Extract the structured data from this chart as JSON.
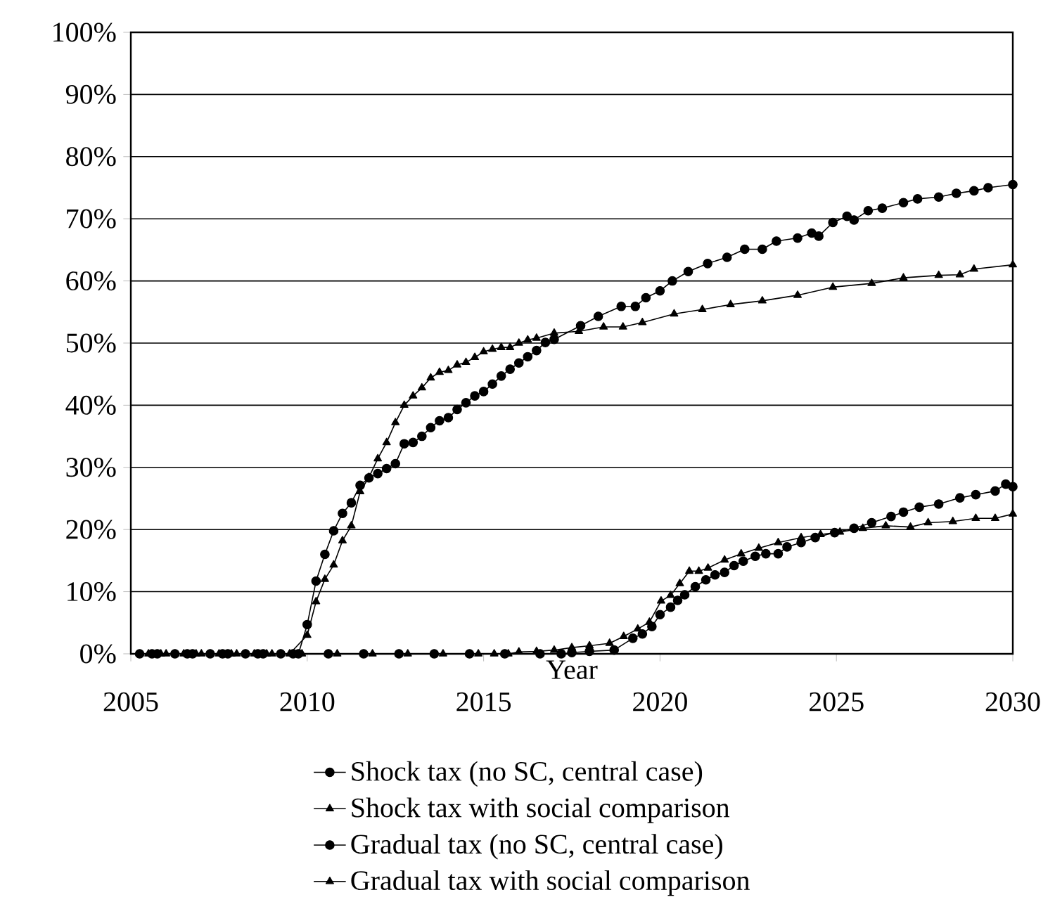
{
  "chart_data": {
    "type": "line",
    "xlabel": "Year",
    "xlim": [
      2005,
      2030
    ],
    "xticks": [
      2005,
      2010,
      2015,
      2020,
      2025,
      2030
    ],
    "ylim": [
      0,
      100
    ],
    "yticks": [
      {
        "value": 0,
        "label": "0%"
      },
      {
        "value": 10,
        "label": "10%"
      },
      {
        "value": 20,
        "label": "20%"
      },
      {
        "value": 30,
        "label": "30%"
      },
      {
        "value": 40,
        "label": "40%"
      },
      {
        "value": 50,
        "label": "50%"
      },
      {
        "value": 60,
        "label": "60%"
      },
      {
        "value": 70,
        "label": "70%"
      },
      {
        "value": 80,
        "label": "80%"
      },
      {
        "value": 90,
        "label": "90%"
      },
      {
        "value": 100,
        "label": "100%"
      }
    ],
    "grid": "y",
    "legend": "bottom",
    "line_style": "solid",
    "series": [
      {
        "name": "Shock tax (no SC, central case)",
        "color": "#000000",
        "marker": "circle",
        "x": [
          2005.25,
          2005.75,
          2006.25,
          2006.75,
          2007.25,
          2007.75,
          2008.25,
          2008.75,
          2009.25,
          2009.75,
          2010,
          2010.25,
          2010.5,
          2010.75,
          2011,
          2011.25,
          2011.5,
          2011.75,
          2012,
          2012.25,
          2012.5,
          2012.75,
          2013,
          2013.25,
          2013.5,
          2013.75,
          2014,
          2014.25,
          2014.5,
          2014.75,
          2015,
          2015.25,
          2015.5,
          2015.75,
          2016,
          2016.25,
          2016.5,
          2016.75,
          2017,
          2017.75,
          2018.25,
          2018.9,
          2019.3,
          2019.6,
          2020,
          2020.35,
          2020.8,
          2021.35,
          2021.9,
          2022.4,
          2022.9,
          2023.3,
          2023.9,
          2024.3,
          2024.5,
          2024.9,
          2025.3,
          2025.5,
          2025.9,
          2026.3,
          2026.9,
          2027.3,
          2027.9,
          2028.4,
          2028.9,
          2029.3,
          2030
        ],
        "values": [
          0,
          0,
          0,
          0,
          0,
          0,
          0,
          0,
          0,
          0,
          4.7,
          11.7,
          16,
          19.8,
          22.6,
          24.3,
          27.1,
          28.3,
          29.0,
          29.8,
          30.6,
          33.8,
          34.0,
          35.0,
          36.4,
          37.5,
          38.0,
          39.3,
          40.4,
          41.5,
          42.2,
          43.4,
          44.7,
          45.8,
          46.8,
          47.8,
          48.8,
          50.1,
          50.6,
          52.8,
          54.3,
          55.9,
          55.9,
          57.3,
          58.4,
          60.0,
          61.5,
          62.8,
          63.8,
          65.1,
          65.1,
          66.4,
          66.9,
          67.7,
          67.2,
          69.4,
          70.4,
          69.8,
          71.3,
          71.7,
          72.6,
          73.2,
          73.5,
          74.1,
          74.5,
          75.0,
          75.5
        ]
      },
      {
        "name": "Shock tax with social comparison",
        "color": "#000000",
        "marker": "triangle",
        "x": [
          2005.5,
          2006,
          2006.5,
          2007,
          2007.5,
          2008,
          2008.5,
          2009,
          2009.5,
          2010,
          2010.25,
          2010.5,
          2010.75,
          2011,
          2011.25,
          2011.5,
          2011.75,
          2012,
          2012.25,
          2012.5,
          2012.75,
          2013,
          2013.25,
          2013.5,
          2013.75,
          2014,
          2014.25,
          2014.5,
          2014.75,
          2015,
          2015.25,
          2015.5,
          2015.75,
          2016,
          2016.25,
          2016.5,
          2017,
          2017.7,
          2018.4,
          2018.95,
          2019.5,
          2020.4,
          2021.2,
          2022,
          2022.9,
          2023.9,
          2024.9,
          2026,
          2026.9,
          2027.9,
          2028.5,
          2028.9,
          2030
        ],
        "values": [
          0,
          0,
          0,
          0,
          0,
          0,
          0,
          0,
          0,
          3.0,
          8.4,
          12,
          14.3,
          18.2,
          20.6,
          26.1,
          28.4,
          31.4,
          34.0,
          37.2,
          40.0,
          41.5,
          42.8,
          44.4,
          45.3,
          45.6,
          46.5,
          46.9,
          47.7,
          48.6,
          49.0,
          49.3,
          49.3,
          50.0,
          50.5,
          50.8,
          51.6,
          51.9,
          52.6,
          52.6,
          53.3,
          54.7,
          55.4,
          56.2,
          56.8,
          57.7,
          59.0,
          59.6,
          60.5,
          60.9,
          61.0,
          61.9,
          62.6
        ]
      },
      {
        "name": "Gradual tax (no SC, central case)",
        "color": "#000000",
        "marker": "circle",
        "x": [
          2005.6,
          2006.6,
          2007.6,
          2008.6,
          2009.6,
          2010.6,
          2011.6,
          2012.6,
          2013.6,
          2014.6,
          2015.6,
          2016.6,
          2017.2,
          2017.5,
          2018,
          2018.7,
          2019.23,
          2019.5,
          2019.77,
          2020,
          2020.3,
          2020.5,
          2020.7,
          2021,
          2021.3,
          2021.56,
          2021.83,
          2022.1,
          2022.36,
          2022.7,
          2023,
          2023.35,
          2023.6,
          2024,
          2024.4,
          2024.95,
          2025.5,
          2026,
          2026.55,
          2026.9,
          2027.35,
          2027.9,
          2028.5,
          2028.95,
          2029.5,
          2029.8,
          2030
        ],
        "values": [
          0,
          0,
          0,
          0,
          0,
          0,
          0,
          0,
          0,
          0,
          0,
          0,
          0,
          0.2,
          0.4,
          0.6,
          2.5,
          3.2,
          4.4,
          6.3,
          7.5,
          8.6,
          9.5,
          10.8,
          11.9,
          12.7,
          13.1,
          14.2,
          14.9,
          15.7,
          16.1,
          16.1,
          17.2,
          17.9,
          18.7,
          19.5,
          20.2,
          21.1,
          22.1,
          22.8,
          23.6,
          24.1,
          25.1,
          25.6,
          26.2,
          27.3,
          26.9
        ]
      },
      {
        "name": "Gradual tax with social comparison",
        "color": "#000000",
        "marker": "triangle",
        "x": [
          2005.85,
          2006.85,
          2007.85,
          2008.85,
          2009.85,
          2010.85,
          2011.85,
          2012.85,
          2013.85,
          2014.85,
          2015.3,
          2015.7,
          2016,
          2016.5,
          2017,
          2017.5,
          2018,
          2018.57,
          2018.97,
          2019.37,
          2019.7,
          2020.03,
          2020.3,
          2020.56,
          2020.83,
          2021.1,
          2021.36,
          2021.83,
          2022.3,
          2022.8,
          2023.35,
          2024,
          2024.55,
          2025.1,
          2025.75,
          2026.4,
          2027.1,
          2027.6,
          2028.3,
          2028.95,
          2029.5,
          2030
        ],
        "values": [
          0,
          0,
          0,
          0,
          0,
          0,
          0,
          0,
          0,
          0,
          0,
          0,
          0.3,
          0.4,
          0.6,
          1.0,
          1.3,
          1.7,
          2.8,
          4.0,
          5.1,
          8.5,
          9.4,
          11.3,
          13.3,
          13.3,
          13.8,
          15.1,
          16.1,
          17.0,
          17.9,
          18.7,
          19.2,
          19.6,
          20.2,
          20.6,
          20.4,
          21.1,
          21.3,
          21.8,
          21.8,
          22.5
        ]
      }
    ]
  }
}
